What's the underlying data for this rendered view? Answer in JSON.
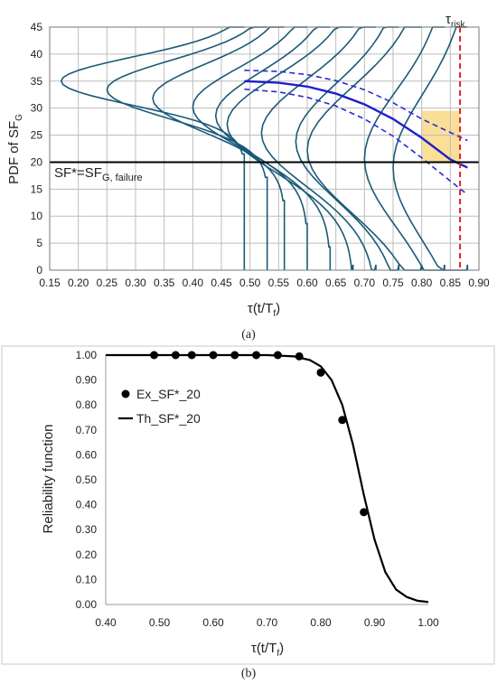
{
  "chart_data": [
    {
      "type": "line",
      "panel_caption": "(a)",
      "ylabel": "PDF of SF",
      "ylabel_sub": "G",
      "xlabel": "τ(t/T",
      "xlabel_sub": "f",
      "xlabel_close": ")",
      "xlim": [
        0.15,
        0.9
      ],
      "ylim": [
        0,
        45
      ],
      "x_ticks": [
        "0.15",
        "0.20",
        "0.25",
        "0.30",
        "0.35",
        "0.40",
        "0.45",
        "0.50",
        "0.55",
        "0.60",
        "0.65",
        "0.70",
        "0.75",
        "0.80",
        "0.85",
        "0.90"
      ],
      "y_ticks": [
        "0",
        "5",
        "10",
        "15",
        "20",
        "25",
        "30",
        "35",
        "40",
        "45"
      ],
      "grid": true,
      "threshold_label": "SF*=SF",
      "threshold_sub": "G, failure",
      "threshold_value": 20,
      "risk_label": "τ",
      "risk_sub": "risk",
      "tau_risk": 0.867,
      "pdf_peaks_y": 35,
      "pdf_tau_values": [
        0.49,
        0.53,
        0.56,
        0.6,
        0.64,
        0.68,
        0.72,
        0.76,
        0.8,
        0.84,
        0.88
      ],
      "pdf_peak_x": [
        0.17,
        0.25,
        0.33,
        0.4,
        0.44,
        0.46,
        0.52,
        0.58,
        0.6,
        0.7,
        0.75
      ],
      "mean_curve": {
        "x": [
          0.49,
          0.55,
          0.6,
          0.65,
          0.7,
          0.75,
          0.8,
          0.85,
          0.88
        ],
        "y": [
          35,
          34.7,
          34.0,
          32.7,
          30.7,
          28.0,
          24.5,
          20.5,
          19
        ]
      },
      "upper_band": {
        "x": [
          0.49,
          0.55,
          0.6,
          0.65,
          0.7,
          0.75,
          0.8,
          0.85,
          0.88
        ],
        "y": [
          37,
          36.8,
          36.2,
          35.1,
          33.4,
          31.0,
          28.0,
          25.5,
          24
        ]
      },
      "lower_band": {
        "x": [
          0.49,
          0.55,
          0.6,
          0.65,
          0.7,
          0.75,
          0.8,
          0.85,
          0.88
        ],
        "y": [
          33.5,
          33.0,
          32.0,
          30.4,
          28.0,
          24.8,
          20.8,
          16.5,
          14
        ]
      },
      "colors": {
        "pdf": "#1a5a78",
        "mean": "#1f1fcc",
        "band": "#2a2ad8",
        "risk": "#e02020",
        "shade": "#f6c444",
        "threshold": "#000000"
      }
    },
    {
      "type": "scatter",
      "panel_caption": "(b)",
      "ylabel": "Reliability function",
      "xlabel": "τ(t/T",
      "xlabel_sub": "f",
      "xlabel_close": ")",
      "xlim": [
        0.4,
        1.0
      ],
      "ylim": [
        0,
        1.0
      ],
      "x_ticks": [
        "0.40",
        "0.50",
        "0.60",
        "0.70",
        "0.80",
        "0.90",
        "1.00"
      ],
      "y_ticks": [
        "0.00",
        "0.10",
        "0.20",
        "0.30",
        "0.40",
        "0.50",
        "0.60",
        "0.70",
        "0.80",
        "0.90",
        "1.00"
      ],
      "grid": false,
      "legend_position": "top-left",
      "series": [
        {
          "name": "Ex_SF*_20",
          "kind": "markers",
          "x": [
            0.49,
            0.53,
            0.56,
            0.6,
            0.64,
            0.68,
            0.72,
            0.76,
            0.8,
            0.84,
            0.88
          ],
          "y": [
            1.0,
            1.0,
            1.0,
            1.0,
            1.0,
            1.0,
            1.0,
            0.995,
            0.93,
            0.74,
            0.37
          ]
        },
        {
          "name": "Th_SF*_20",
          "kind": "line",
          "x": [
            0.4,
            0.7,
            0.75,
            0.78,
            0.8,
            0.82,
            0.84,
            0.86,
            0.88,
            0.9,
            0.92,
            0.94,
            0.96,
            0.98,
            1.0
          ],
          "y": [
            1.0,
            1.0,
            0.995,
            0.98,
            0.955,
            0.9,
            0.8,
            0.64,
            0.44,
            0.26,
            0.13,
            0.06,
            0.03,
            0.015,
            0.01
          ]
        }
      ],
      "colors": {
        "points": "#000000",
        "line": "#000000"
      }
    }
  ]
}
